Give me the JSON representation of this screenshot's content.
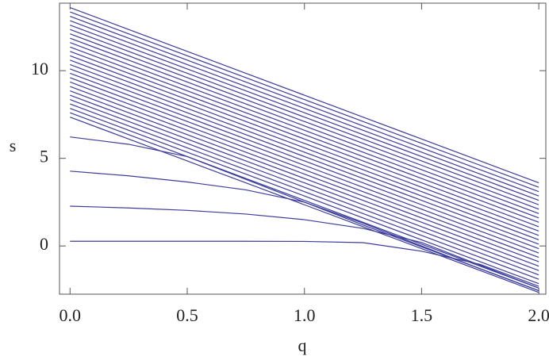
{
  "chart_data": {
    "type": "line",
    "x_label": "q",
    "y_label": "s",
    "color": "#3b3b9c",
    "x": [
      0,
      0.25,
      0.5,
      0.75,
      1,
      1.25,
      1.5,
      1.75,
      2
    ],
    "xlim": [
      -0.045,
      2.03
    ],
    "ylim": [
      -2.75,
      13.85
    ],
    "xticks": [
      {
        "value": 0,
        "label": "0.0"
      },
      {
        "value": 0.5,
        "label": "0.5"
      },
      {
        "value": 1,
        "label": "1.0"
      },
      {
        "value": 1.5,
        "label": "1.5"
      },
      {
        "value": 2,
        "label": "2.0"
      }
    ],
    "yticks": [
      0,
      5,
      10
    ],
    "series": [
      {
        "values": [
          0.27,
          0.27,
          0.27,
          0.27,
          0.26,
          0.19,
          -0.3,
          -1.05,
          -2.3
        ]
      },
      {
        "values": [
          2.27,
          2.17,
          2.03,
          1.82,
          1.5,
          1.0,
          0.2,
          -1.1,
          -2.4
        ]
      },
      {
        "values": [
          4.27,
          4.0,
          3.65,
          3.2,
          2.5,
          1.3,
          0.0,
          -1.3,
          -2.55
        ]
      },
      {
        "values": [
          6.22,
          5.8,
          5.1,
          3.8,
          2.5,
          1.2,
          -0.05,
          -1.3,
          -2.55
        ]
      },
      {
        "values": [
          7.35,
          6.1,
          4.85,
          3.6,
          2.35,
          1.1,
          -0.15,
          -1.4,
          -2.65
        ]
      },
      {
        "values": [
          7.6,
          6.35,
          5.1,
          3.85,
          2.6,
          1.35,
          0.1,
          -1.15,
          -2.4
        ]
      },
      {
        "values": [
          7.85,
          6.6,
          5.35,
          4.1,
          2.85,
          1.6,
          0.35,
          -0.9,
          -2.15
        ]
      },
      {
        "values": [
          8.1,
          6.85,
          5.6,
          4.35,
          3.1,
          1.85,
          0.6,
          -0.65,
          -1.9
        ]
      },
      {
        "values": [
          8.35,
          7.1,
          5.85,
          4.6,
          3.35,
          2.1,
          0.85,
          -0.4,
          -1.65
        ]
      },
      {
        "values": [
          8.6,
          7.35,
          6.1,
          4.85,
          3.6,
          2.35,
          1.1,
          -0.15,
          -1.4
        ]
      },
      {
        "values": [
          8.85,
          7.6,
          6.35,
          5.1,
          3.85,
          2.6,
          1.35,
          0.1,
          -1.15
        ]
      },
      {
        "values": [
          9.1,
          7.85,
          6.6,
          5.35,
          4.1,
          2.85,
          1.6,
          0.35,
          -0.9
        ]
      },
      {
        "values": [
          9.35,
          8.1,
          6.85,
          5.6,
          4.35,
          3.1,
          1.85,
          0.6,
          -0.65
        ]
      },
      {
        "values": [
          9.6,
          8.35,
          7.1,
          5.85,
          4.6,
          3.35,
          2.1,
          0.85,
          -0.4
        ]
      },
      {
        "values": [
          9.85,
          8.6,
          7.35,
          6.1,
          4.85,
          3.6,
          2.35,
          1.1,
          -0.15
        ]
      },
      {
        "values": [
          10.1,
          8.85,
          7.6,
          6.35,
          5.1,
          3.85,
          2.6,
          1.35,
          0.1
        ]
      },
      {
        "values": [
          10.35,
          9.1,
          7.85,
          6.6,
          5.35,
          4.1,
          2.85,
          1.6,
          0.35
        ]
      },
      {
        "values": [
          10.6,
          9.35,
          8.1,
          6.85,
          5.6,
          4.35,
          3.1,
          1.85,
          0.6
        ]
      },
      {
        "values": [
          10.85,
          9.6,
          8.35,
          7.1,
          5.85,
          4.6,
          3.35,
          2.1,
          0.85
        ]
      },
      {
        "values": [
          11.1,
          9.85,
          8.6,
          7.35,
          6.1,
          4.85,
          3.6,
          2.35,
          1.1
        ]
      },
      {
        "values": [
          11.35,
          10.1,
          8.85,
          7.6,
          6.35,
          5.1,
          3.85,
          2.6,
          1.35
        ]
      },
      {
        "values": [
          11.6,
          10.35,
          9.1,
          7.85,
          6.6,
          5.35,
          4.1,
          2.85,
          1.6
        ]
      },
      {
        "values": [
          11.85,
          10.6,
          9.35,
          8.1,
          6.85,
          5.6,
          4.35,
          3.1,
          1.85
        ]
      },
      {
        "values": [
          12.1,
          10.85,
          9.6,
          8.35,
          7.1,
          5.85,
          4.6,
          3.35,
          2.1
        ]
      },
      {
        "values": [
          12.35,
          11.1,
          9.85,
          8.6,
          7.35,
          6.1,
          4.85,
          3.6,
          2.35
        ]
      },
      {
        "values": [
          12.6,
          11.35,
          10.1,
          8.85,
          7.6,
          6.35,
          5.1,
          3.85,
          2.6
        ]
      },
      {
        "values": [
          12.85,
          11.6,
          10.35,
          9.1,
          7.85,
          6.6,
          5.35,
          4.1,
          2.85
        ]
      },
      {
        "values": [
          13.1,
          11.85,
          10.6,
          9.35,
          8.1,
          6.85,
          5.6,
          4.35,
          3.1
        ]
      },
      {
        "values": [
          13.35,
          12.1,
          10.85,
          9.6,
          8.35,
          7.1,
          5.85,
          4.6,
          3.35
        ]
      },
      {
        "values": [
          13.6,
          12.35,
          11.1,
          9.85,
          8.6,
          7.35,
          6.1,
          4.85,
          3.6
        ]
      }
    ]
  }
}
